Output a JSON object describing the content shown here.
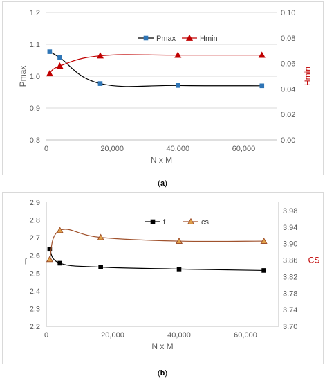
{
  "charts": [
    {
      "id": "a",
      "type": "line",
      "caption": "(a)",
      "xlabel": "N x M",
      "ylabel_left": "Pmax",
      "ylabel_right": "Hmin",
      "xlim": [
        0,
        70000
      ],
      "xticks": [
        0,
        20000,
        40000,
        60000
      ],
      "xtick_labels": [
        "0",
        "20,000",
        "40,000",
        "60,000"
      ],
      "ylim_left": [
        0.8,
        1.2
      ],
      "yticks_left": [
        "0.8",
        "0.9",
        "1.0",
        "1.1",
        "1.2"
      ],
      "ylim_right": [
        0.0,
        0.1
      ],
      "yticks_right": [
        "0.00",
        "0.02",
        "0.04",
        "0.06",
        "0.08",
        "0.10"
      ],
      "grid": "horizontal",
      "legend": "top-right",
      "series": [
        {
          "name": "Pmax",
          "axis": "left",
          "marker": "square",
          "color": "#2e75b6",
          "line_color": "#000000",
          "x": [
            1024,
            4096,
            16384,
            40000,
            65536
          ],
          "y": [
            1.077,
            1.058,
            0.977,
            0.971,
            0.97
          ]
        },
        {
          "name": "Hmin",
          "axis": "right",
          "marker": "triangle",
          "color": "#c00000",
          "line_color": "#c00000",
          "x": [
            1024,
            4096,
            16384,
            40000,
            65536
          ],
          "y": [
            0.052,
            0.058,
            0.066,
            0.0665,
            0.0665
          ]
        }
      ],
      "ylabel_right_color": "#c00000"
    },
    {
      "id": "b",
      "type": "line",
      "caption": "(b)",
      "xlabel": "N x M",
      "ylabel_left": "f",
      "ylabel_right": "CS",
      "xlim": [
        0,
        70000
      ],
      "xticks": [
        0,
        20000,
        40000,
        60000
      ],
      "xtick_labels": [
        "0",
        "20,000",
        "40,000",
        "60,000"
      ],
      "ylim_left": [
        2.2,
        2.9
      ],
      "yticks_left": [
        "2.2",
        "2.3",
        "2.4",
        "2.5",
        "2.6",
        "2.7",
        "2.8",
        "2.9"
      ],
      "ylim_right": [
        3.7,
        4.0
      ],
      "yticks_right": [
        "3.70",
        "3.74",
        "3.78",
        "3.82",
        "3.86",
        "3.90",
        "3.94",
        "3.98"
      ],
      "grid": "none",
      "legend": "top-center",
      "series": [
        {
          "name": "f",
          "axis": "left",
          "marker": "square",
          "color": "#000000",
          "line_color": "#000000",
          "x": [
            1024,
            4096,
            16384,
            40000,
            65536
          ],
          "y": [
            2.635,
            2.556,
            2.534,
            2.523,
            2.515
          ]
        },
        {
          "name": "cs",
          "axis": "right",
          "marker": "triangle",
          "color": "#e0a14a",
          "line_color": "#a0522d",
          "x": [
            1024,
            4096,
            16384,
            40000,
            65536
          ],
          "y": [
            3.862,
            3.932,
            3.915,
            3.906,
            3.906
          ]
        }
      ],
      "ylabel_right_color": "#c00000"
    }
  ]
}
